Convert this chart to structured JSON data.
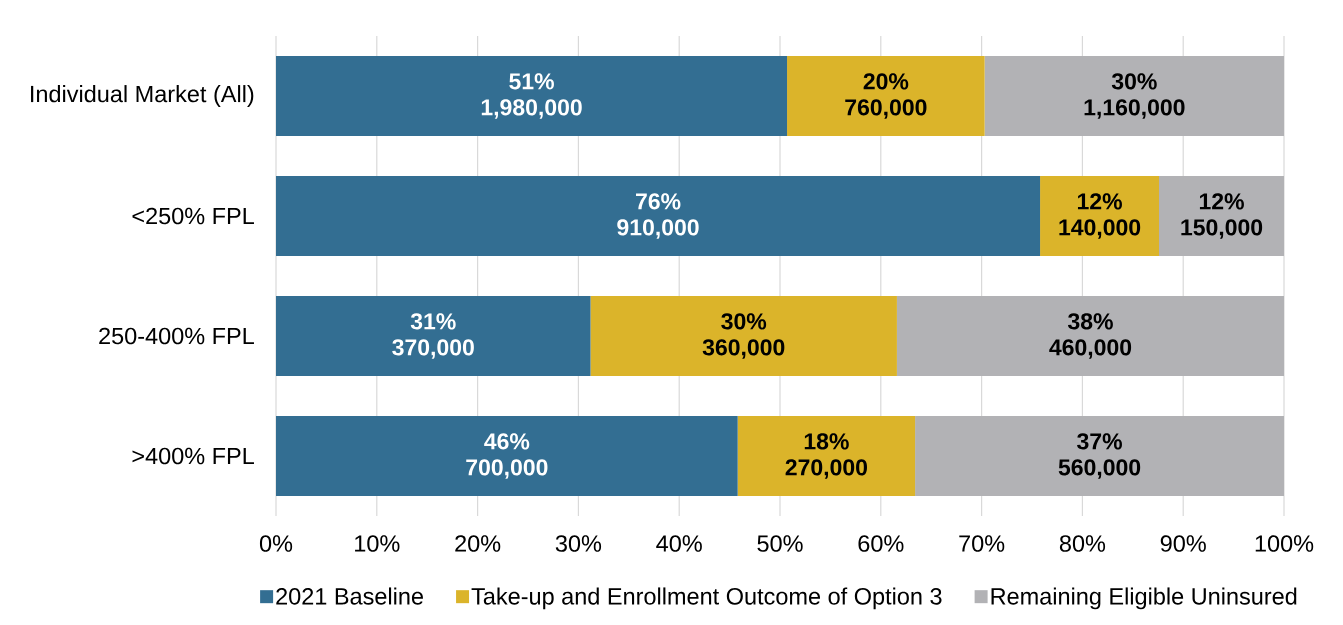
{
  "chart_data": {
    "type": "bar",
    "orientation": "horizontal",
    "stacked": true,
    "categories": [
      "Individual Market (All)",
      "<250% FPL",
      "250-400% FPL",
      ">400% FPL"
    ],
    "series": [
      {
        "name": "2021 Baseline",
        "color": "#336e92",
        "values": [
          50.7,
          75.8,
          31.2,
          45.8
        ],
        "value_labels": [
          "51% 1,980,000",
          "76% 910,000",
          "31% 370,000",
          "46% 700,000"
        ]
      },
      {
        "name": "Take-up and Enrollment Outcome of Option 3",
        "color": "#dbb42a",
        "values": [
          19.6,
          11.8,
          30.4,
          17.6
        ],
        "value_labels": [
          "20% 760,000",
          "12% 140,000",
          "30% 360,000",
          "18% 270,000"
        ]
      },
      {
        "name": "Remaining Eligible Uninsured",
        "color": "#b2b2b5",
        "values": [
          29.7,
          12.4,
          38.4,
          36.6
        ],
        "value_labels": [
          "30% 1,160,000",
          "12% 150,000",
          "38% 460,000",
          "37% 560,000"
        ]
      }
    ],
    "xlim": [
      0,
      100
    ],
    "xticks": [
      {
        "value": 0,
        "label": "0%"
      },
      {
        "value": 10,
        "label": "10%"
      },
      {
        "value": 20,
        "label": "20%"
      },
      {
        "value": 30,
        "label": "30%"
      },
      {
        "value": 40,
        "label": "40%"
      },
      {
        "value": 50,
        "label": "50%"
      },
      {
        "value": 60,
        "label": "60%"
      },
      {
        "value": 70,
        "label": "70%"
      },
      {
        "value": 80,
        "label": "80%"
      },
      {
        "value": 90,
        "label": "90%"
      },
      {
        "value": 100,
        "label": "100%"
      }
    ],
    "grid": "x",
    "legend": "bottom"
  }
}
